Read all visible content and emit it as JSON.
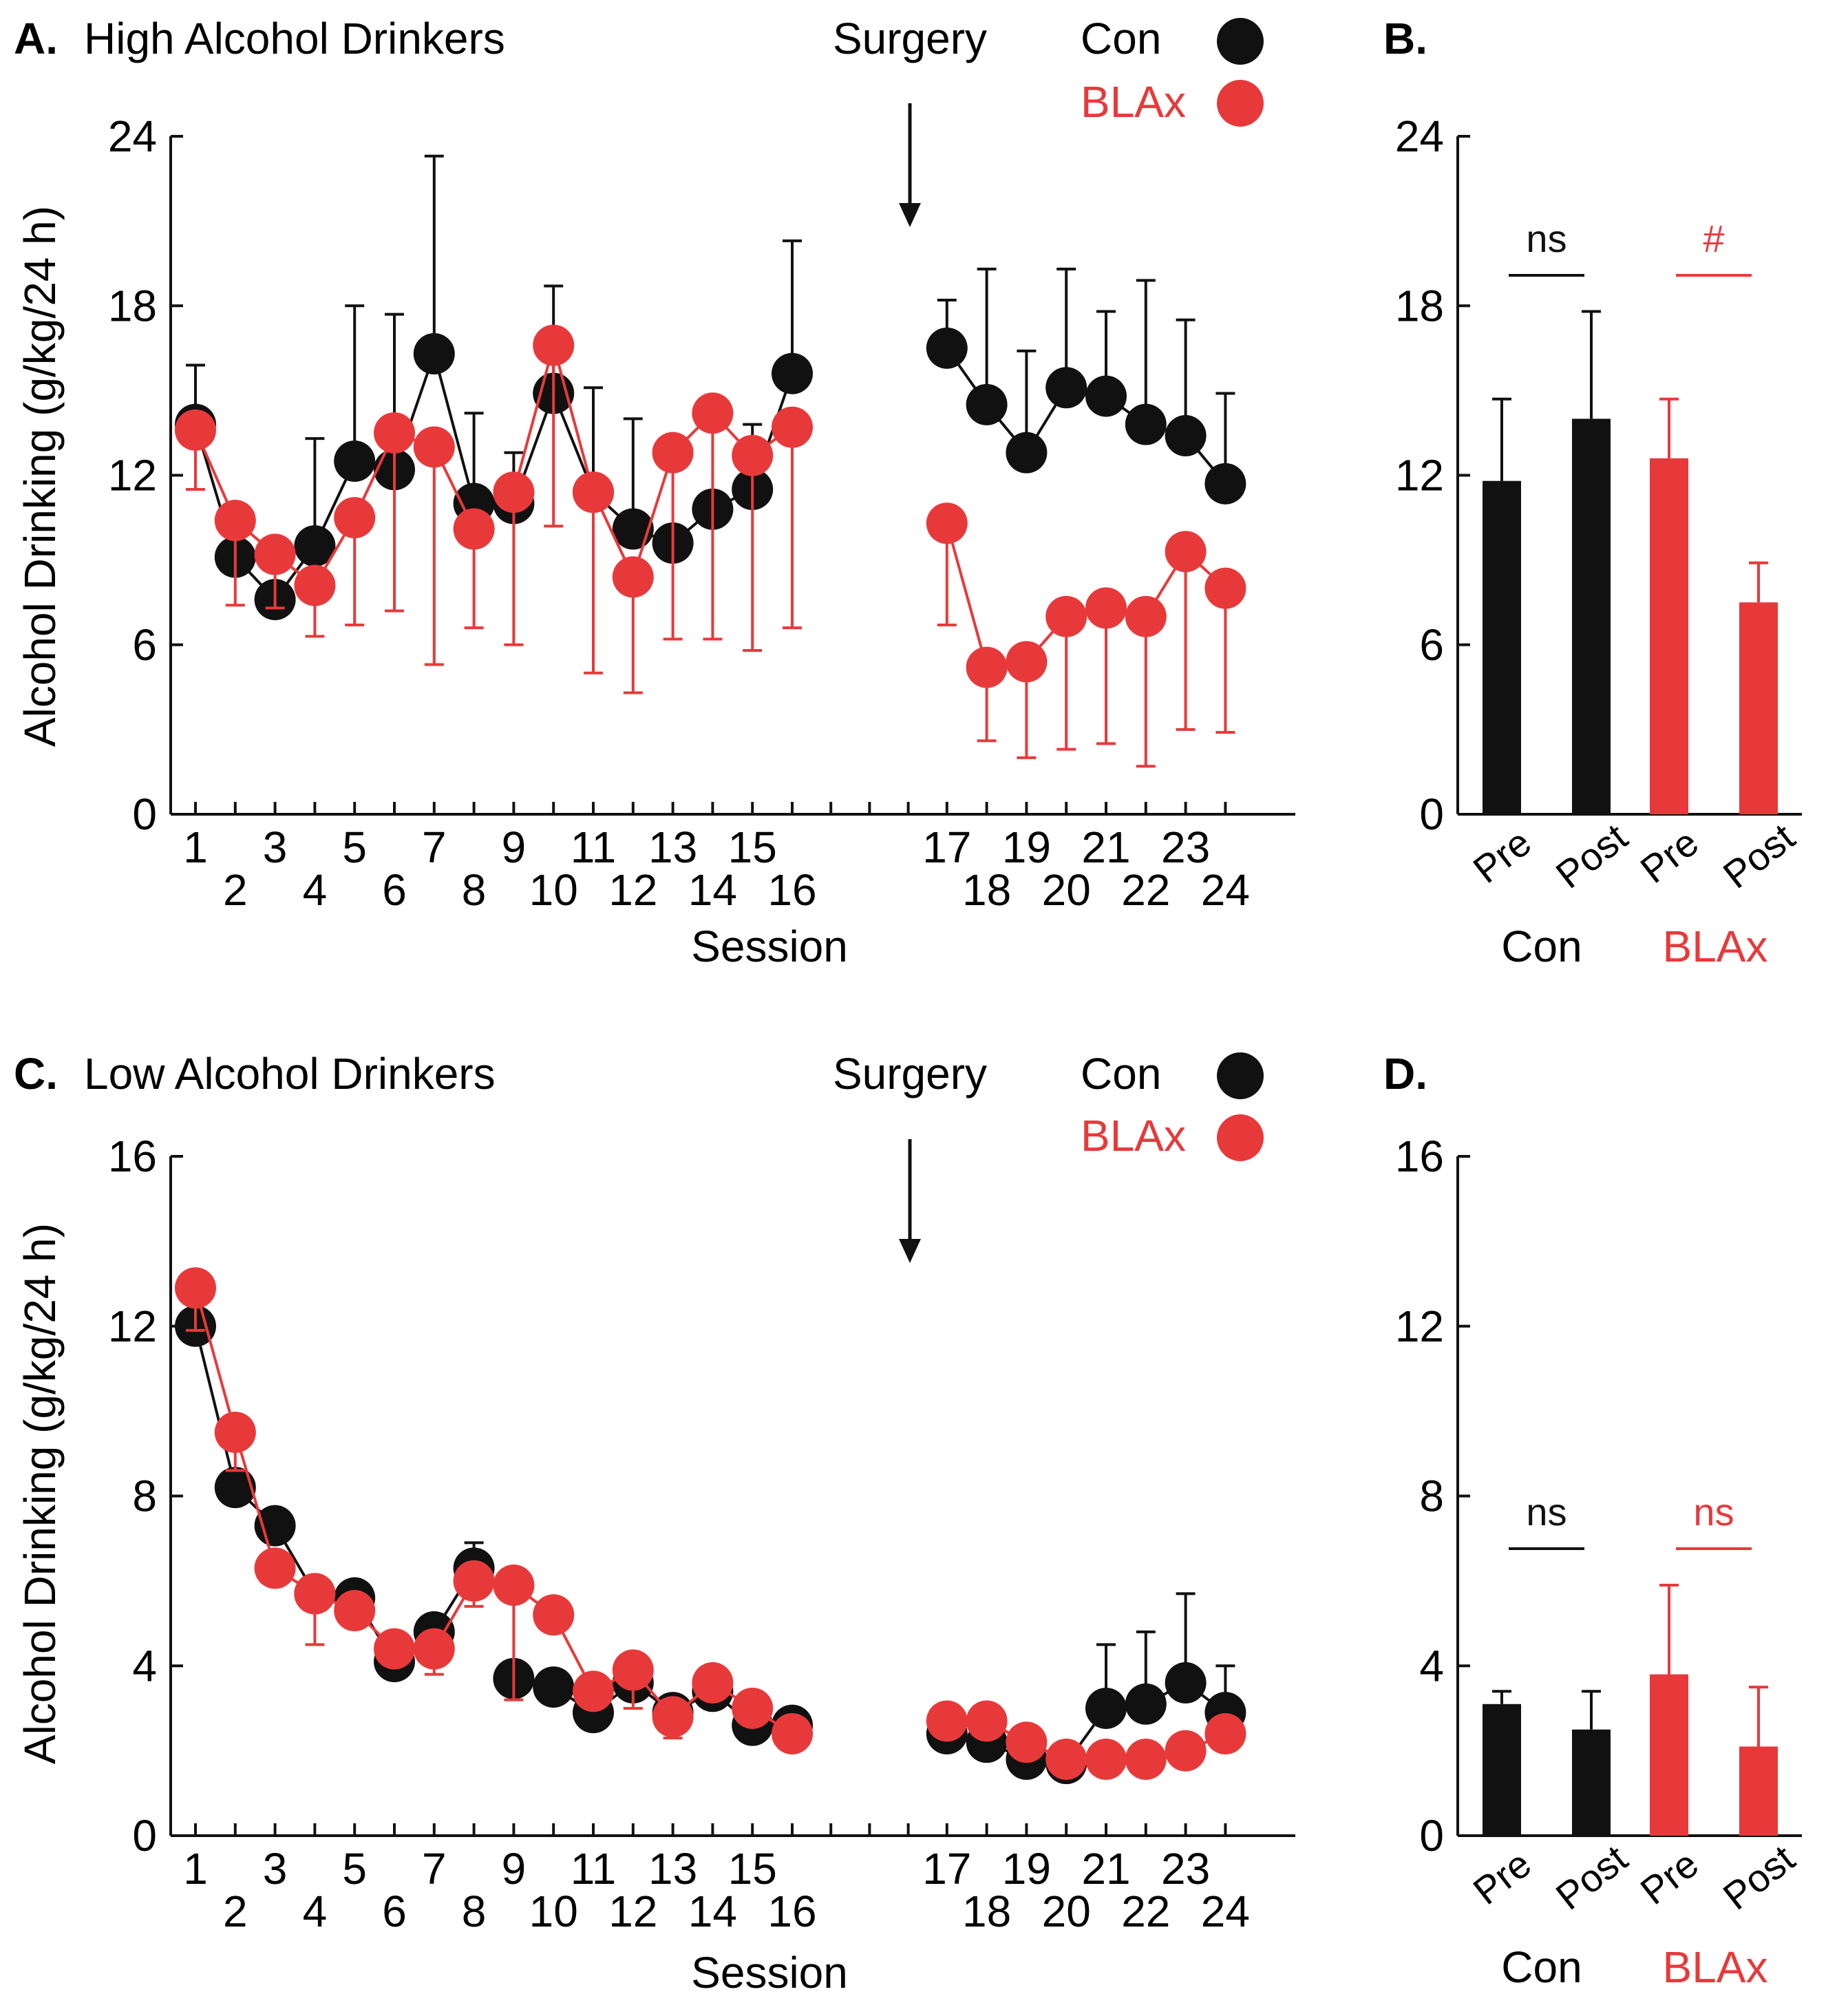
{
  "colors": {
    "con": "#111111",
    "blax": "#e8393a",
    "axis": "#111111"
  },
  "legend": {
    "con_label": "Con",
    "blax_label": "BLAx"
  },
  "surgery_label": "Surgery",
  "chart_data": [
    {
      "id": "A",
      "type": "line",
      "panel_letter": "A.",
      "title": "High Alcohol Drinkers",
      "xlabel": "Session",
      "ylabel": "Alcohol Drinking (g/kg/24 h)",
      "ylim": [
        0,
        24
      ],
      "yticks": [
        "0",
        "6",
        "12",
        "18",
        "24"
      ],
      "xticks_top": [
        "1",
        "3",
        "5",
        "7",
        "9",
        "11",
        "13",
        "15",
        "17",
        "19",
        "21",
        "23"
      ],
      "xticks_bottom": [
        "2",
        "4",
        "6",
        "8",
        "10",
        "12",
        "14",
        "16",
        "18",
        "20",
        "22",
        "24"
      ],
      "series": [
        {
          "name": "Con",
          "x": [
            1,
            2,
            3,
            4,
            5,
            6,
            7,
            8,
            9,
            10,
            11,
            12,
            13,
            14,
            15,
            16,
            17,
            18,
            19,
            20,
            21,
            22,
            23,
            24
          ],
          "values": [
            13.8,
            9.1,
            7.6,
            9.5,
            12.5,
            12.2,
            16.3,
            11.0,
            11.0,
            14.9,
            11.4,
            10.1,
            9.6,
            10.8,
            11.5,
            15.6,
            16.5,
            14.5,
            12.8,
            15.1,
            14.8,
            13.8,
            13.4,
            11.7
          ],
          "err_up": [
            2.1,
            0,
            0,
            3.8,
            5.5,
            5.5,
            7.0,
            3.2,
            1.8,
            3.8,
            3.7,
            3.9,
            0,
            0,
            2.3,
            4.7,
            1.7,
            4.8,
            3.6,
            4.2,
            3.0,
            5.1,
            4.1,
            3.2
          ],
          "err_down": [
            0,
            0,
            0,
            0,
            0,
            0,
            0,
            0,
            0,
            0,
            0,
            0,
            0,
            0,
            0,
            0,
            0,
            0,
            0,
            0,
            0,
            0,
            0,
            0
          ]
        },
        {
          "name": "BLAx",
          "x": [
            1,
            2,
            3,
            4,
            5,
            6,
            7,
            8,
            9,
            10,
            11,
            12,
            13,
            14,
            15,
            16,
            17,
            18,
            19,
            20,
            21,
            22,
            23,
            24
          ],
          "values": [
            13.6,
            10.4,
            9.2,
            8.1,
            10.5,
            13.5,
            13.0,
            10.1,
            11.4,
            16.6,
            11.4,
            8.4,
            12.8,
            14.2,
            12.7,
            13.7,
            10.3,
            5.2,
            5.4,
            7.0,
            7.3,
            7.0,
            9.3,
            8.0
          ],
          "err_up": [
            0,
            0,
            0,
            0,
            0,
            0,
            0,
            0,
            0,
            0,
            0,
            0,
            0,
            0,
            0,
            0,
            0,
            0,
            0,
            0,
            0,
            0,
            0,
            0
          ],
          "err_down": [
            2.1,
            3.0,
            1.9,
            1.8,
            3.8,
            6.3,
            7.7,
            3.5,
            5.4,
            6.4,
            6.4,
            4.1,
            6.6,
            8.0,
            6.9,
            7.1,
            3.6,
            2.6,
            3.4,
            4.7,
            4.8,
            5.3,
            6.3,
            5.1
          ]
        }
      ]
    },
    {
      "id": "B",
      "type": "bar",
      "panel_letter": "B.",
      "ylim": [
        0,
        24
      ],
      "yticks": [
        "0",
        "6",
        "12",
        "18",
        "24"
      ],
      "categories": [
        "Pre",
        "Post",
        "Pre",
        "Post"
      ],
      "groups": [
        "Con",
        "BLAx"
      ],
      "values": [
        11.8,
        14.0,
        12.6,
        7.5
      ],
      "err_up": [
        2.9,
        3.8,
        2.1,
        1.4
      ],
      "series_index": [
        0,
        0,
        1,
        1
      ],
      "annotations": [
        "ns",
        "#"
      ]
    },
    {
      "id": "C",
      "type": "line",
      "panel_letter": "C.",
      "title": "Low Alcohol Drinkers",
      "xlabel": "Session",
      "ylabel": "Alcohol Drinking (g/kg/24 h)",
      "ylim": [
        0,
        16
      ],
      "yticks": [
        "0",
        "4",
        "8",
        "12",
        "16"
      ],
      "xticks_top": [
        "1",
        "3",
        "5",
        "7",
        "9",
        "11",
        "13",
        "15",
        "17",
        "19",
        "21",
        "23"
      ],
      "xticks_bottom": [
        "2",
        "4",
        "6",
        "8",
        "10",
        "12",
        "14",
        "16",
        "18",
        "20",
        "22",
        "24"
      ],
      "series": [
        {
          "name": "Con",
          "x": [
            1,
            2,
            3,
            4,
            5,
            6,
            7,
            8,
            9,
            10,
            11,
            12,
            13,
            14,
            15,
            16,
            17,
            18,
            19,
            20,
            21,
            22,
            23,
            24
          ],
          "values": [
            12.0,
            8.2,
            7.3,
            5.7,
            5.6,
            4.1,
            4.8,
            6.3,
            3.7,
            3.5,
            2.9,
            3.6,
            2.9,
            3.4,
            2.6,
            2.6,
            2.4,
            2.2,
            1.8,
            1.7,
            3.0,
            3.1,
            3.6,
            2.9
          ],
          "err_up": [
            0,
            0,
            0,
            0,
            0,
            0,
            0,
            0.6,
            0,
            0,
            0,
            0.6,
            0,
            0,
            0,
            0,
            0,
            0,
            0,
            0,
            1.5,
            1.7,
            2.1,
            1.1
          ],
          "err_down": [
            0,
            0,
            0,
            0,
            0,
            0,
            0,
            0,
            0,
            0,
            0,
            0,
            0,
            0,
            0,
            0,
            0,
            0,
            0,
            0,
            0,
            0,
            0,
            0
          ]
        },
        {
          "name": "BLAx",
          "x": [
            1,
            2,
            3,
            4,
            5,
            6,
            7,
            8,
            9,
            10,
            11,
            12,
            13,
            14,
            15,
            16,
            17,
            18,
            19,
            20,
            21,
            22,
            23,
            24
          ],
          "values": [
            12.9,
            9.5,
            6.3,
            5.7,
            5.3,
            4.4,
            4.4,
            6.0,
            5.9,
            5.2,
            3.4,
            3.9,
            2.8,
            3.6,
            3.0,
            2.4,
            2.7,
            2.7,
            2.2,
            1.8,
            1.8,
            1.8,
            2.0,
            2.4
          ],
          "err_up": [
            0,
            0,
            0,
            0,
            0,
            0,
            0,
            0,
            0,
            0,
            0,
            0,
            0,
            0,
            0,
            0,
            0,
            0,
            0,
            0,
            0,
            0,
            0,
            0
          ],
          "err_down": [
            1.0,
            0.9,
            0,
            1.2,
            0,
            0,
            0.6,
            0.6,
            2.7,
            0,
            0,
            0.9,
            0.5,
            0,
            0,
            0,
            0,
            0,
            0,
            0,
            0,
            0,
            0,
            0
          ]
        }
      ]
    },
    {
      "id": "D",
      "type": "bar",
      "panel_letter": "D.",
      "ylim": [
        0,
        16
      ],
      "yticks": [
        "0",
        "4",
        "8",
        "12",
        "16"
      ],
      "categories": [
        "Pre",
        "Post",
        "Pre",
        "Post"
      ],
      "groups": [
        "Con",
        "BLAx"
      ],
      "values": [
        3.1,
        2.5,
        3.8,
        2.1
      ],
      "err_up": [
        0.3,
        0.9,
        2.1,
        1.4
      ],
      "series_index": [
        0,
        0,
        1,
        1
      ],
      "annotations": [
        "ns",
        "ns"
      ]
    }
  ]
}
